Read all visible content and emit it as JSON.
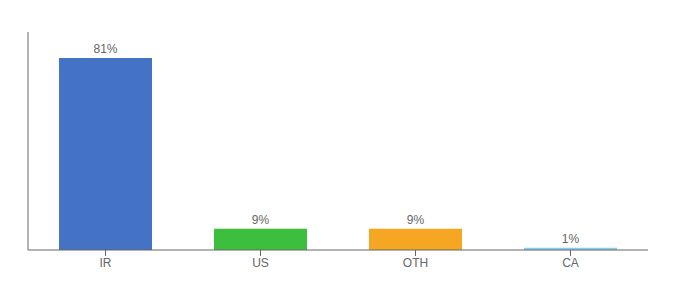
{
  "chart_data": {
    "type": "bar",
    "categories": [
      "IR",
      "US",
      "OTH",
      "CA"
    ],
    "values": [
      81,
      9,
      9,
      1
    ],
    "value_labels": [
      "81%",
      "9%",
      "9%",
      "1%"
    ],
    "colors": [
      "#4472c4",
      "#3dbf3d",
      "#f5a623",
      "#87ceeb"
    ],
    "ylim": [
      0,
      92
    ],
    "data_labels": true,
    "tick_labels": "x",
    "grid": false
  }
}
